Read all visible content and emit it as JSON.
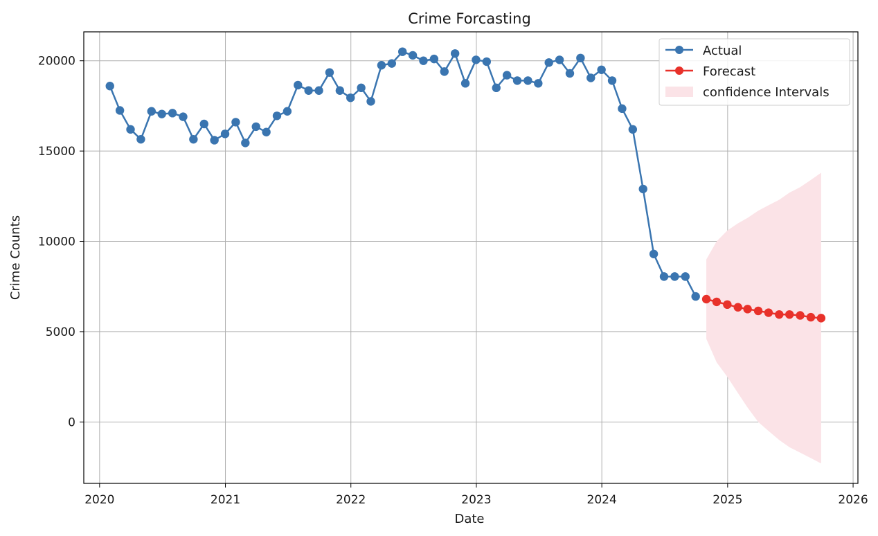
{
  "chart_data": {
    "type": "line",
    "title": "Crime Forcasting",
    "xlabel": "Date",
    "ylabel": "Crime Counts",
    "xlim": [
      "2019-11-16",
      "2026-01-15"
    ],
    "ylim": [
      -3400,
      21600
    ],
    "x_ticks": [
      "2020-01-01",
      "2021-01-01",
      "2022-01-01",
      "2023-01-01",
      "2024-01-01",
      "2025-01-01",
      "2026-01-01"
    ],
    "x_tick_labels": [
      "2020",
      "2021",
      "2022",
      "2023",
      "2024",
      "2025",
      "2026"
    ],
    "y_ticks": [
      0,
      5000,
      10000,
      15000,
      20000
    ],
    "y_tick_labels": [
      "0",
      "5000",
      "10000",
      "15000",
      "20000"
    ],
    "grid": true,
    "legend_position": "top-right",
    "legend": [
      "Actual",
      "Forecast",
      "confidence Intervals"
    ],
    "colors": {
      "actual": "#3a75b0",
      "forecast": "#e8312a",
      "confidence": "#fbe3e7"
    },
    "series": [
      {
        "name": "Actual",
        "x": [
          "2020-01-31",
          "2020-02-29",
          "2020-03-31",
          "2020-04-30",
          "2020-05-31",
          "2020-06-30",
          "2020-07-31",
          "2020-08-31",
          "2020-09-30",
          "2020-10-31",
          "2020-11-30",
          "2020-12-31",
          "2021-01-31",
          "2021-02-28",
          "2021-03-31",
          "2021-04-30",
          "2021-05-31",
          "2021-06-30",
          "2021-07-31",
          "2021-08-31",
          "2021-09-30",
          "2021-10-31",
          "2021-11-30",
          "2021-12-31",
          "2022-01-31",
          "2022-02-28",
          "2022-03-31",
          "2022-04-30",
          "2022-05-31",
          "2022-06-30",
          "2022-07-31",
          "2022-08-31",
          "2022-09-30",
          "2022-10-31",
          "2022-11-30",
          "2022-12-31",
          "2023-01-31",
          "2023-02-28",
          "2023-03-31",
          "2023-04-30",
          "2023-05-31",
          "2023-06-30",
          "2023-07-31",
          "2023-08-31",
          "2023-09-30",
          "2023-10-31",
          "2023-11-30",
          "2023-12-31",
          "2024-01-31",
          "2024-02-29",
          "2024-03-31",
          "2024-04-30",
          "2024-05-31",
          "2024-06-30",
          "2024-07-31",
          "2024-08-31",
          "2024-09-30"
        ],
        "values": [
          18600,
          17250,
          16200,
          15650,
          17200,
          17050,
          17100,
          16900,
          15650,
          16500,
          15600,
          15950,
          16600,
          15450,
          16350,
          16050,
          16950,
          17200,
          18650,
          18350,
          18350,
          19350,
          18350,
          17950,
          18500,
          17750,
          19750,
          19850,
          20500,
          20300,
          20000,
          20100,
          19400,
          20400,
          18750,
          20050,
          19950,
          18500,
          19200,
          18900,
          18900,
          18750,
          19900,
          20050,
          19300,
          20150,
          19050,
          19500,
          18900,
          17350,
          16200,
          12900,
          9300,
          8050,
          8050,
          8050,
          6950
        ]
      },
      {
        "name": "Forecast",
        "x": [
          "2024-10-31",
          "2024-11-30",
          "2024-12-31",
          "2025-01-31",
          "2025-02-28",
          "2025-03-31",
          "2025-04-30",
          "2025-05-31",
          "2025-06-30",
          "2025-07-31",
          "2025-08-31",
          "2025-09-30"
        ],
        "values": [
          6800,
          6650,
          6500,
          6350,
          6250,
          6150,
          6050,
          5950,
          5950,
          5900,
          5800,
          5750
        ]
      }
    ],
    "confidence_interval": {
      "name": "confidence Intervals",
      "x": [
        "2024-10-31",
        "2024-11-30",
        "2024-12-31",
        "2025-01-31",
        "2025-02-28",
        "2025-03-31",
        "2025-04-30",
        "2025-05-31",
        "2025-06-30",
        "2025-07-31",
        "2025-08-31",
        "2025-09-30"
      ],
      "lower": [
        4600,
        3300,
        2500,
        1600,
        800,
        0,
        -500,
        -1000,
        -1400,
        -1700,
        -2000,
        -2300
      ],
      "upper": [
        9000,
        10000,
        10600,
        11000,
        11300,
        11700,
        12000,
        12300,
        12700,
        13000,
        13400,
        13800
      ]
    }
  }
}
